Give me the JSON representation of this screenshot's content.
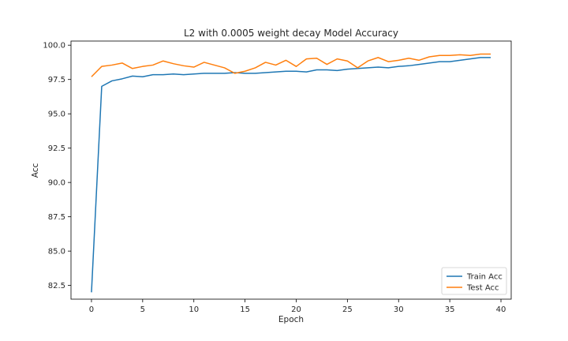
{
  "chart_data": {
    "type": "line",
    "title": "L2 with 0.0005 weight decay Model Accuracy",
    "xlabel": "Epoch",
    "ylabel": "Acc",
    "xlim": [
      -2,
      41
    ],
    "ylim": [
      81.5,
      100.3
    ],
    "xticks": [
      0,
      5,
      10,
      15,
      20,
      25,
      30,
      35,
      40
    ],
    "yticks": [
      82.5,
      85.0,
      87.5,
      90.0,
      92.5,
      95.0,
      97.5,
      100.0
    ],
    "legend_position": "lower-right",
    "grid": false,
    "x": [
      0,
      1,
      2,
      3,
      4,
      5,
      6,
      7,
      8,
      9,
      10,
      11,
      12,
      13,
      14,
      15,
      16,
      17,
      18,
      19,
      20,
      21,
      22,
      23,
      24,
      25,
      26,
      27,
      28,
      29,
      30,
      31,
      32,
      33,
      34,
      35,
      36,
      37,
      38,
      39
    ],
    "series": [
      {
        "name": "Train Acc",
        "color": "#1f77b4",
        "values": [
          82.0,
          97.0,
          97.4,
          97.55,
          97.75,
          97.7,
          97.85,
          97.85,
          97.9,
          97.85,
          97.9,
          97.95,
          97.95,
          97.95,
          98.0,
          97.95,
          97.95,
          98.0,
          98.05,
          98.1,
          98.1,
          98.05,
          98.2,
          98.2,
          98.15,
          98.25,
          98.3,
          98.35,
          98.4,
          98.35,
          98.45,
          98.5,
          98.6,
          98.7,
          98.8,
          98.8,
          98.9,
          99.0,
          99.1,
          99.1
        ]
      },
      {
        "name": "Test Acc",
        "color": "#ff7f0e",
        "values": [
          97.7,
          98.45,
          98.55,
          98.7,
          98.3,
          98.45,
          98.55,
          98.85,
          98.65,
          98.5,
          98.4,
          98.75,
          98.55,
          98.35,
          97.95,
          98.1,
          98.35,
          98.75,
          98.55,
          98.9,
          98.45,
          99.0,
          99.05,
          98.6,
          99.0,
          98.85,
          98.35,
          98.85,
          99.1,
          98.8,
          98.9,
          99.05,
          98.9,
          99.15,
          99.25,
          99.25,
          99.3,
          99.25,
          99.35,
          99.35
        ]
      }
    ]
  }
}
